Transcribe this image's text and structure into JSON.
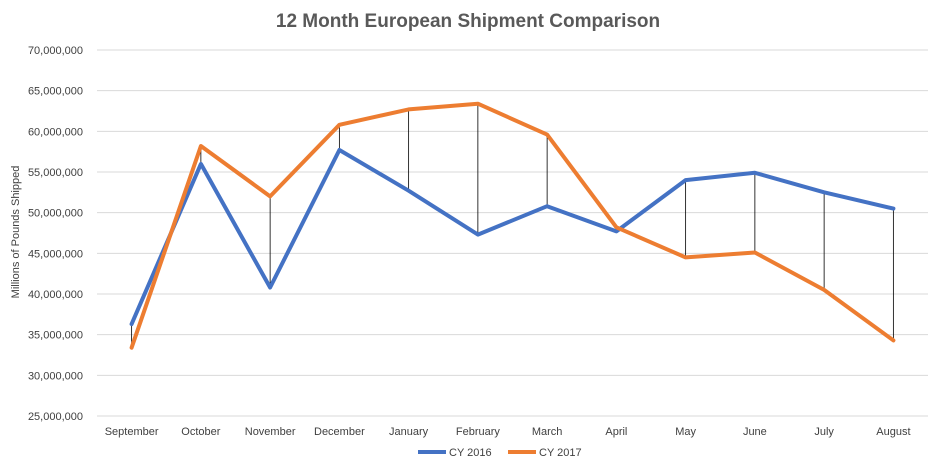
{
  "chart_data": {
    "type": "line",
    "title": "12 Month European Shipment Comparison",
    "xlabel": "",
    "ylabel": "Millions of Pounds Shipped",
    "categories": [
      "September",
      "October",
      "November",
      "December",
      "January",
      "February",
      "March",
      "April",
      "May",
      "June",
      "July",
      "August"
    ],
    "ylim": [
      25000000,
      70000000
    ],
    "ytick_step": 5000000,
    "yticks": [
      "25,000,000",
      "30,000,000",
      "35,000,000",
      "40,000,000",
      "45,000,000",
      "50,000,000",
      "55,000,000",
      "60,000,000",
      "65,000,000",
      "70,000,000"
    ],
    "grid": true,
    "drop_lines": true,
    "legend_position": "bottom",
    "series": [
      {
        "name": "CY 2016",
        "color": "#4472C4",
        "values": [
          36300000,
          56000000,
          40800000,
          57700000,
          52700000,
          47300000,
          50800000,
          47700000,
          54000000,
          54900000,
          52500000,
          50500000
        ]
      },
      {
        "name": "CY 2017",
        "color": "#ED7D31",
        "values": [
          33400000,
          58200000,
          52000000,
          60800000,
          62700000,
          63400000,
          59600000,
          48200000,
          44500000,
          45100000,
          40500000,
          34300000
        ]
      }
    ]
  }
}
